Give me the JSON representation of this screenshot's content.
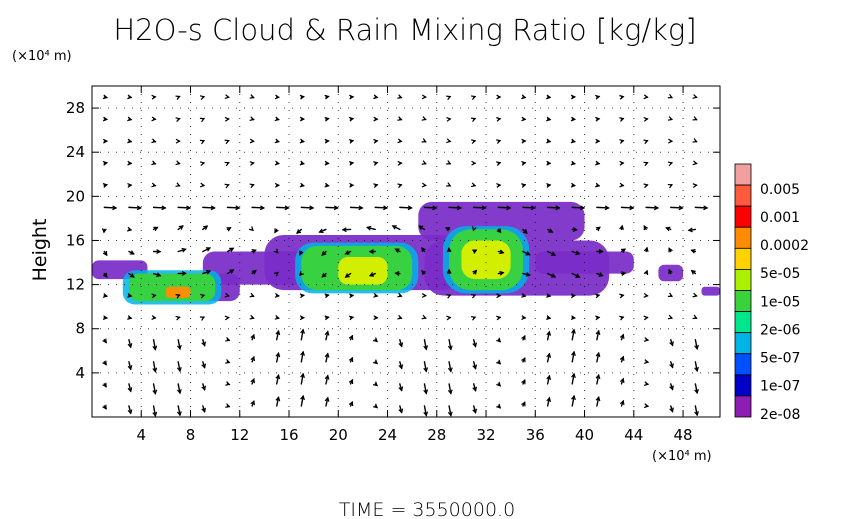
{
  "chart_data": {
    "type": "heatmap",
    "title": "H2O-s Cloud & Rain Mixing Ratio [kg/kg]",
    "x_unit_label": "(×10⁴ m)",
    "y_unit_label": "(×10⁴ m)",
    "ylabel": "Height",
    "xlim": [
      0,
      51
    ],
    "ylim": [
      0,
      30
    ],
    "x_ticks": [
      4,
      8,
      12,
      16,
      20,
      24,
      28,
      32,
      36,
      40,
      44,
      48
    ],
    "y_ticks": [
      4,
      8,
      12,
      16,
      20,
      24,
      28
    ],
    "grid": true,
    "colorbar": {
      "labels": [
        "0.005",
        "0.001",
        "0.0002",
        "5e-05",
        "1e-05",
        "2e-06",
        "5e-07",
        "1e-07",
        "2e-08"
      ],
      "colors": [
        "#f0a0a0",
        "#ff5a3c",
        "#ff0000",
        "#ff8c00",
        "#ffd200",
        "#aaf000",
        "#3ad23a",
        "#00e68c",
        "#00b4e6",
        "#0050ff",
        "#0000c8",
        "#8c1eb4"
      ]
    },
    "cloud_regions": [
      {
        "level": "2e-08",
        "x": [
          0,
          4.5
        ],
        "y": [
          12.5,
          14.2
        ]
      },
      {
        "level": "2e-08",
        "x": [
          8,
          12
        ],
        "y": [
          10.5,
          13.0
        ]
      },
      {
        "level": "2e-08",
        "x": [
          9,
          22
        ],
        "y": [
          12.0,
          15.0
        ]
      },
      {
        "level": "2e-08",
        "x": [
          14,
          30
        ],
        "y": [
          11.5,
          16.5
        ]
      },
      {
        "level": "2e-08",
        "x": [
          27,
          42
        ],
        "y": [
          11.0,
          16.0
        ]
      },
      {
        "level": "2e-08",
        "x": [
          26.5,
          40
        ],
        "y": [
          16.0,
          19.5
        ]
      },
      {
        "level": "2e-08",
        "x": [
          36,
          44
        ],
        "y": [
          13.0,
          15.0
        ]
      },
      {
        "level": "2e-08",
        "x": [
          46,
          48
        ],
        "y": [
          12.3,
          13.8
        ]
      },
      {
        "level": "2e-08",
        "x": [
          49.5,
          51
        ],
        "y": [
          11.0,
          11.8
        ]
      },
      {
        "level": "1e-05",
        "x": [
          3,
          10
        ],
        "y": [
          10.5,
          13.0
        ]
      },
      {
        "level": "1e-05",
        "x": [
          17,
          26
        ],
        "y": [
          11.5,
          15.5
        ]
      },
      {
        "level": "1e-05",
        "x": [
          29,
          35
        ],
        "y": [
          11.5,
          17.0
        ]
      },
      {
        "level": "5e-05",
        "x": [
          20,
          24
        ],
        "y": [
          12.0,
          14.5
        ]
      },
      {
        "level": "5e-05",
        "x": [
          30,
          34
        ],
        "y": [
          12.5,
          16.0
        ]
      },
      {
        "level": "0.0002",
        "x": [
          6,
          8
        ],
        "y": [
          10.8,
          11.8
        ]
      }
    ],
    "time_label": "TIME = 3550000.0"
  }
}
